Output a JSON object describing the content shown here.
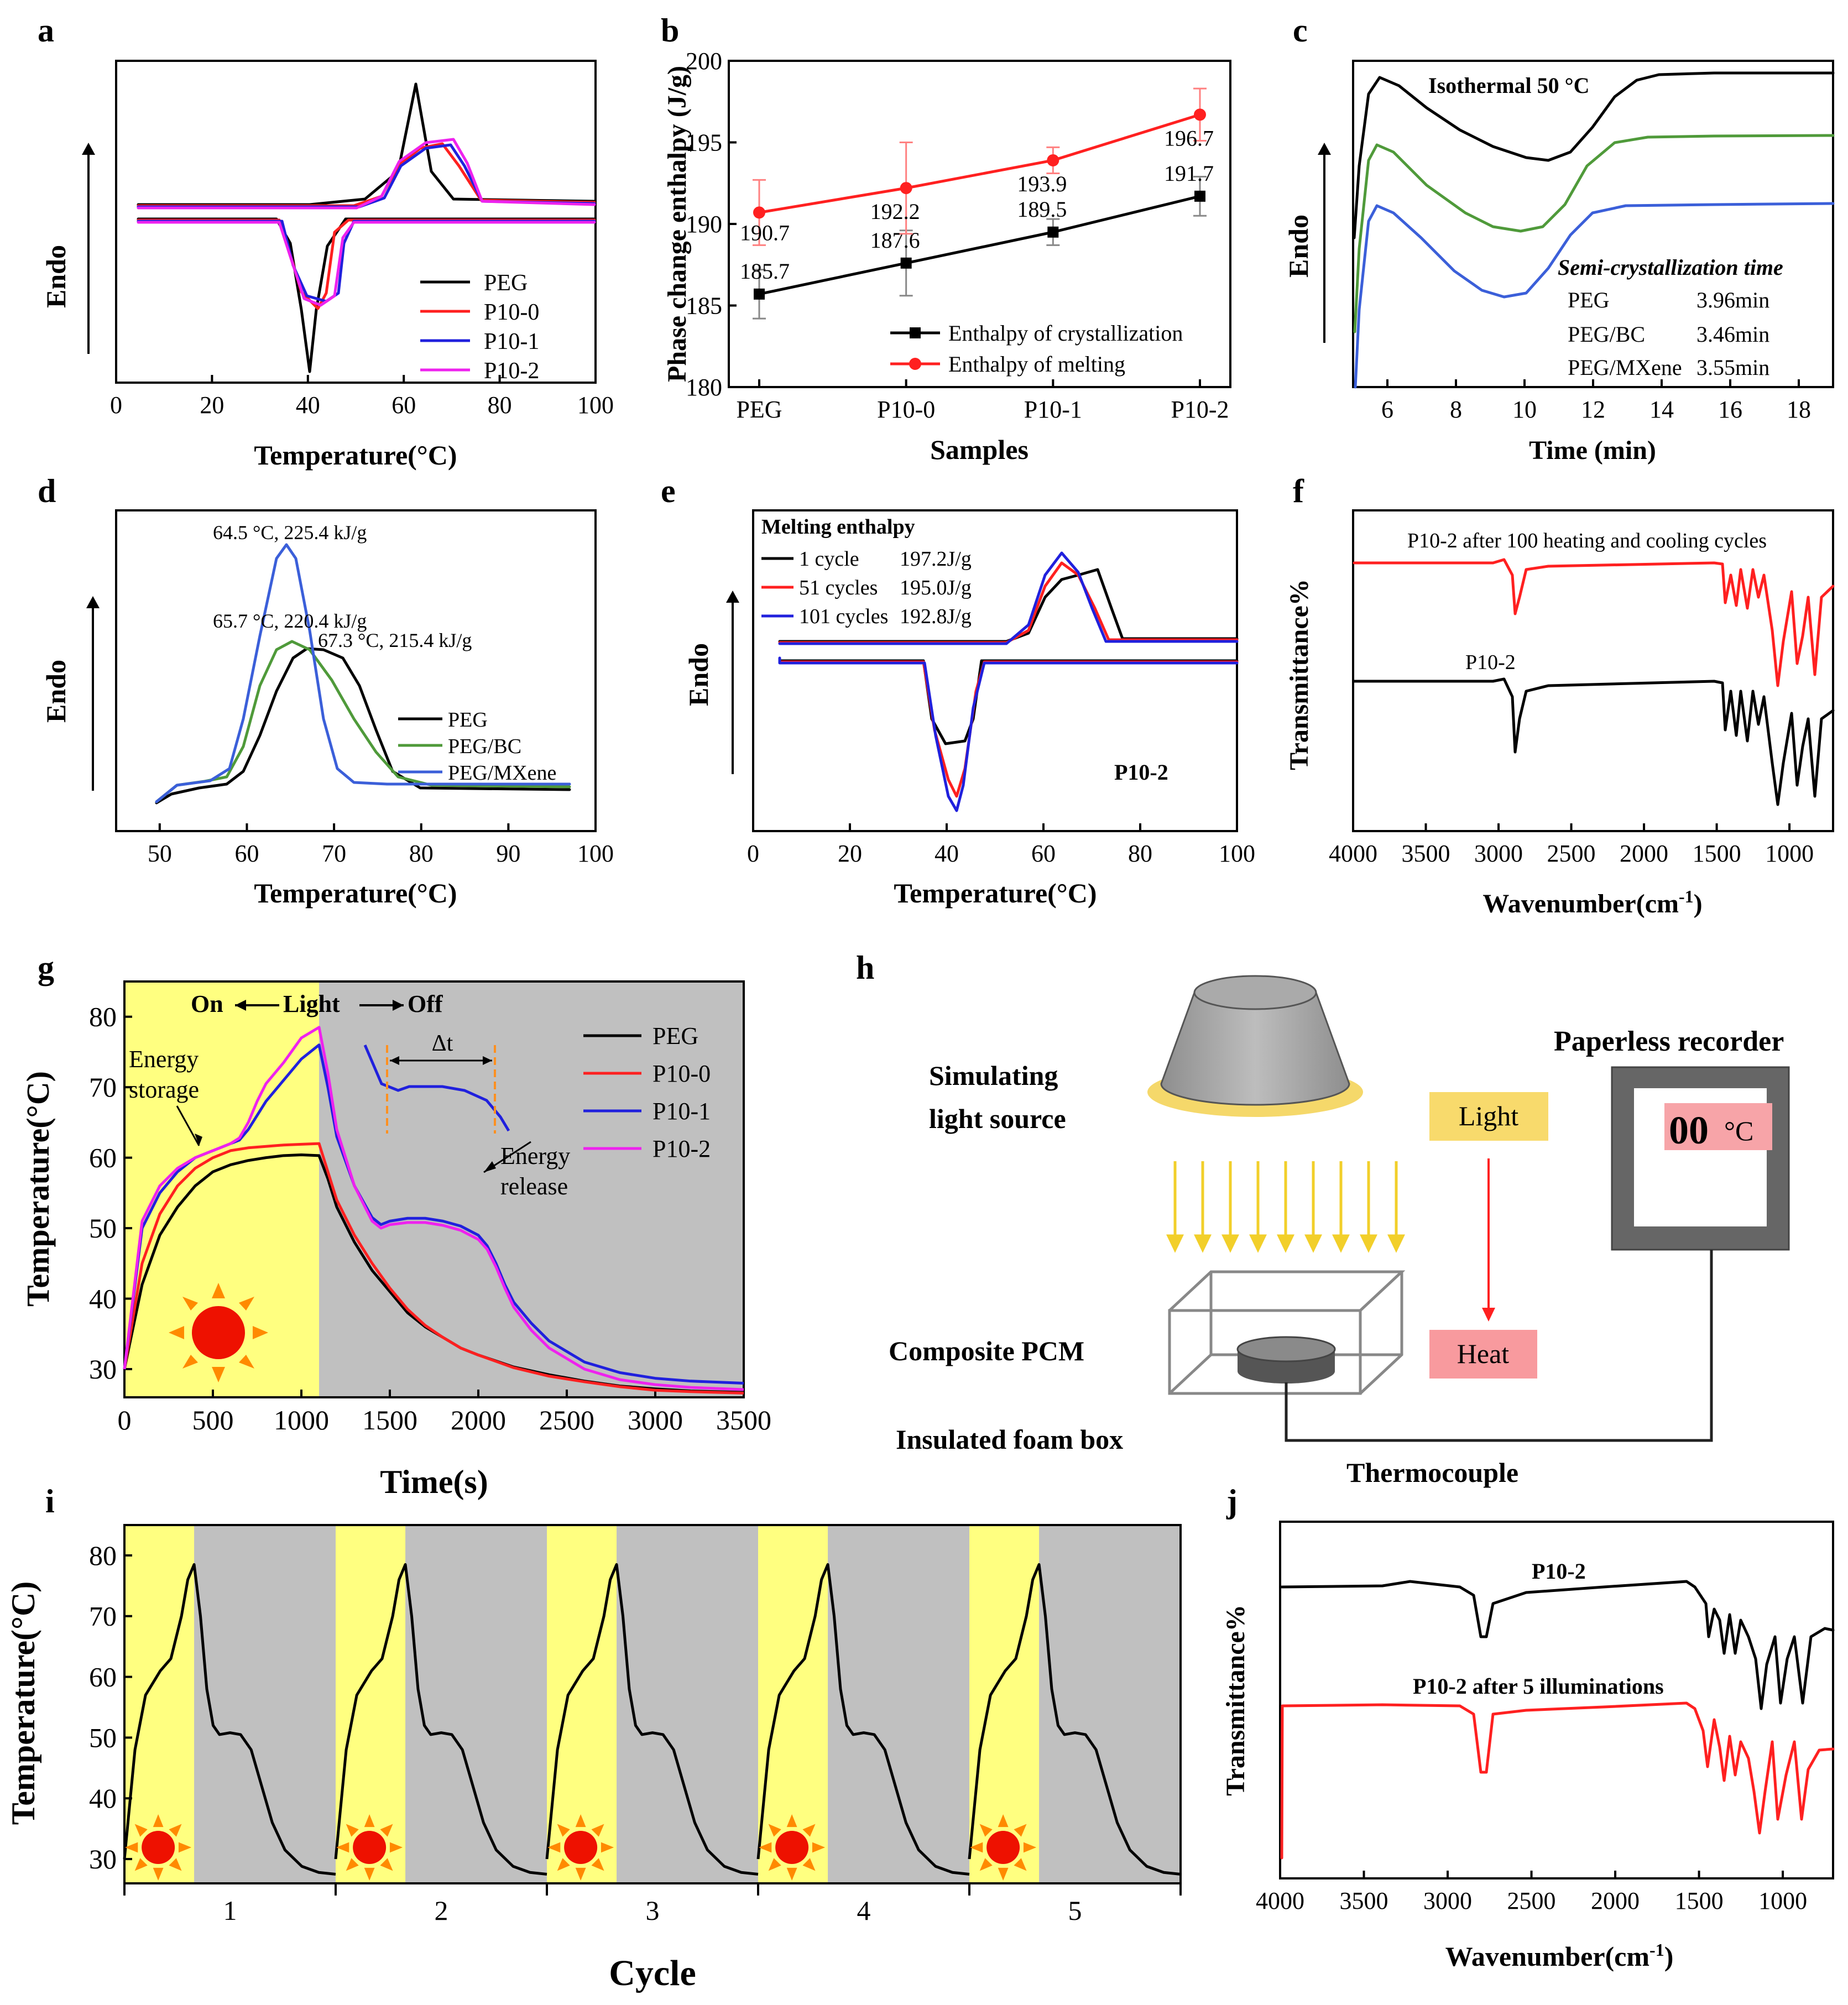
{
  "chart_data": [
    {
      "id": "a",
      "type": "line",
      "panel_label": "a",
      "xlabel": "Temperature(°C)",
      "ylabel": "Endo",
      "xlim": [
        0,
        100
      ],
      "xticks": [
        0,
        20,
        40,
        60,
        80,
        100
      ],
      "legend": [
        {
          "name": "PEG",
          "color": "#000000"
        },
        {
          "name": "P10-0",
          "color": "#ff2020"
        },
        {
          "name": "P10-1",
          "color": "#2020dd"
        },
        {
          "name": "P10-2",
          "color": "#ee22ee"
        }
      ]
    },
    {
      "id": "b",
      "type": "line",
      "panel_label": "b",
      "xlabel": "Samples",
      "ylabel": "Phase change enthalpy (J/g)",
      "categories": [
        "PEG",
        "P10-0",
        "P10-1",
        "P10-2"
      ],
      "ylim": [
        180,
        200
      ],
      "yticks": [
        180,
        185,
        190,
        195,
        200
      ],
      "series": [
        {
          "name": "Enthalpy of crystallization",
          "color": "#000000",
          "values": [
            185.7,
            187.6,
            189.5,
            191.7
          ],
          "errors": [
            1.5,
            2.0,
            0.8,
            1.2
          ],
          "labels": [
            "185.7",
            "187.6",
            "189.5",
            "191.7"
          ]
        },
        {
          "name": "Enthalpy of melting",
          "color": "#ff2020",
          "values": [
            190.7,
            192.2,
            193.9,
            196.7
          ],
          "errors": [
            2.0,
            2.8,
            0.8,
            1.6
          ],
          "labels": [
            "190.7",
            "192.2",
            "193.9",
            "196.7"
          ]
        }
      ]
    },
    {
      "id": "c",
      "type": "line",
      "panel_label": "c",
      "xlabel": "Time (min)",
      "ylabel": "Endo",
      "xlim": [
        5,
        19
      ],
      "xticks": [
        6,
        8,
        10,
        12,
        14,
        16,
        18
      ],
      "annotation": "Isothermal 50 °C",
      "table_title": "Semi-crystallization time",
      "table": [
        {
          "name": "PEG",
          "value": "3.96min",
          "color": "#000000"
        },
        {
          "name": "PEG/BC",
          "value": "3.46min",
          "color": "#4f9a3a"
        },
        {
          "name": "PEG/MXene",
          "value": "3.55min",
          "color": "#3b5fd9"
        }
      ]
    },
    {
      "id": "d",
      "type": "line",
      "panel_label": "d",
      "xlabel": "Temperature(°C)",
      "ylabel": "Endo",
      "xlim": [
        45,
        100
      ],
      "xticks": [
        50,
        60,
        70,
        80,
        90,
        100
      ],
      "peaks": [
        {
          "text": "64.5 °C, 225.4 kJ/g",
          "color": "#3b5fd9"
        },
        {
          "text": "65.7 °C, 220.4 kJ/g",
          "color": "#4f9a3a"
        },
        {
          "text": "67.3 °C, 215.4 kJ/g",
          "color": "#000000"
        }
      ],
      "legend": [
        {
          "name": "PEG",
          "color": "#000000"
        },
        {
          "name": "PEG/BC",
          "color": "#4f9a3a"
        },
        {
          "name": "PEG/MXene",
          "color": "#3b5fd9"
        }
      ]
    },
    {
      "id": "e",
      "type": "line",
      "panel_label": "e",
      "xlabel": "Temperature(°C)",
      "ylabel": "Endo",
      "xlim": [
        0,
        100
      ],
      "xticks": [
        0,
        20,
        40,
        60,
        80,
        100
      ],
      "sample": "P10-2",
      "legend_title": "Melting enthalpy",
      "legend": [
        {
          "name": "1 cycle",
          "value": "197.2J/g",
          "color": "#000000"
        },
        {
          "name": "51 cycles",
          "value": "195.0J/g",
          "color": "#ff2020"
        },
        {
          "name": "101 cycles",
          "value": "192.8J/g",
          "color": "#2020dd"
        }
      ]
    },
    {
      "id": "f",
      "type": "line",
      "panel_label": "f",
      "xlabel": "Wavenumber(cm",
      "xlabel_sup": "-1",
      "xlabel_end": ")",
      "ylabel": "Transmittance%",
      "xlim": [
        4000,
        700
      ],
      "xticks": [
        4000,
        3500,
        3000,
        2500,
        2000,
        1500,
        1000
      ],
      "series": [
        {
          "name": "P10-2 after 100 heating and cooling cycles",
          "color": "#ff2020"
        },
        {
          "name": "P10-2",
          "color": "#000000"
        }
      ]
    },
    {
      "id": "g",
      "type": "line",
      "panel_label": "g",
      "xlabel": "Time(s)",
      "ylabel": "Temperature(°C)",
      "xlim": [
        0,
        3500
      ],
      "ylim": [
        26,
        85
      ],
      "xticks": [
        0,
        500,
        1000,
        1500,
        2000,
        2500,
        3000,
        3500
      ],
      "yticks": [
        30,
        40,
        50,
        60,
        70,
        80
      ],
      "light_off_at": 1100,
      "header": {
        "on": "On",
        "light": "Light",
        "off": "Off"
      },
      "annotations": {
        "storage_1": "Energy",
        "storage_2": "storage",
        "release_1": "Energy",
        "release_2": "release",
        "delta": "Δt"
      },
      "series": [
        {
          "name": "PEG",
          "color": "#000000",
          "x": [
            0,
            100,
            200,
            300,
            400,
            500,
            600,
            700,
            800,
            900,
            1000,
            1100,
            1150,
            1200,
            1300,
            1400,
            1500,
            1600,
            1700,
            1800,
            1900,
            2000,
            2200,
            2400,
            2600,
            2800,
            3000,
            3200,
            3500
          ],
          "y": [
            30,
            42,
            49,
            53,
            56,
            58,
            59,
            59.6,
            60,
            60.3,
            60.4,
            60.3,
            57,
            53,
            48,
            44,
            41,
            38,
            36,
            34.5,
            33,
            32,
            30.3,
            29.2,
            28.3,
            27.6,
            27.2,
            26.9,
            26.7
          ]
        },
        {
          "name": "P10-0",
          "color": "#ff2020",
          "x": [
            0,
            100,
            200,
            300,
            400,
            500,
            600,
            700,
            800,
            900,
            1000,
            1100,
            1150,
            1200,
            1300,
            1400,
            1500,
            1600,
            1700,
            1800,
            1900,
            2000,
            2200,
            2400,
            2600,
            2800,
            3000,
            3200,
            3500
          ],
          "y": [
            30,
            45,
            52,
            56,
            58.5,
            60,
            61,
            61.4,
            61.6,
            61.8,
            61.9,
            62,
            58,
            54,
            49,
            45,
            41.5,
            38.5,
            36.2,
            34.5,
            33,
            32,
            30.2,
            29,
            28.2,
            27.5,
            27,
            26.8,
            26.6
          ]
        },
        {
          "name": "P10-1",
          "color": "#2020dd",
          "x": [
            0,
            100,
            200,
            300,
            400,
            500,
            600,
            650,
            700,
            750,
            800,
            900,
            1000,
            1100,
            1150,
            1200,
            1300,
            1400,
            1450,
            1500,
            1600,
            1700,
            1800,
            1900,
            2000,
            2050,
            2100,
            2150,
            2200,
            2300,
            2400,
            2600,
            2800,
            3000,
            3200,
            3500
          ],
          "y": [
            30,
            50,
            55,
            58,
            60,
            61,
            62,
            62.5,
            64,
            66,
            68,
            71,
            74,
            76,
            70,
            63,
            56,
            51.5,
            50.5,
            51,
            51.4,
            51.4,
            51,
            50.3,
            49,
            47.5,
            45,
            42,
            39.5,
            36.5,
            34,
            31,
            29.5,
            28.7,
            28.3,
            28
          ]
        },
        {
          "name": "P10-2",
          "color": "#ee22ee",
          "x": [
            0,
            100,
            200,
            300,
            400,
            500,
            600,
            650,
            700,
            750,
            800,
            900,
            1000,
            1100,
            1150,
            1200,
            1300,
            1400,
            1450,
            1500,
            1600,
            1700,
            1800,
            1900,
            2000,
            2050,
            2100,
            2150,
            2200,
            2300,
            2400,
            2600,
            2800,
            3000,
            3200,
            3500
          ],
          "y": [
            30,
            51,
            56,
            58.5,
            60,
            61,
            62,
            62.8,
            65,
            68,
            70.5,
            73.5,
            77,
            78.5,
            72,
            64,
            56,
            51,
            50,
            50.5,
            50.8,
            50.8,
            50.4,
            49.7,
            48.4,
            47,
            44.5,
            41.5,
            38.8,
            35.5,
            33,
            30,
            28.5,
            27.8,
            27.4,
            27.1
          ]
        }
      ]
    },
    {
      "id": "i",
      "type": "line",
      "panel_label": "i",
      "xlabel": "Cycle",
      "ylabel": "Temperature(°C)",
      "ylim": [
        26,
        85
      ],
      "yticks": [
        30,
        40,
        50,
        60,
        70,
        80
      ],
      "categories": [
        "1",
        "2",
        "3",
        "4",
        "5"
      ]
    },
    {
      "id": "j",
      "type": "line",
      "panel_label": "j",
      "xlabel": "Wavenumber(cm",
      "xlabel_sup": "-1",
      "xlabel_end": ")",
      "ylabel": "Transmittance%",
      "xlim": [
        4000,
        700
      ],
      "xticks": [
        4000,
        3500,
        3000,
        2500,
        2000,
        1500,
        1000
      ],
      "series": [
        {
          "name": "P10-2",
          "color": "#000000"
        },
        {
          "name": "P10-2 after 5 illuminations",
          "color": "#ff2020"
        }
      ]
    }
  ],
  "diagram_h": {
    "panel_label": "h",
    "light_source_1": "Simulating",
    "light_source_2": "light source",
    "recorder": "Paperless recorder",
    "display_digits": "00",
    "display_unit": "°C",
    "light_box": "Light",
    "heat_box": "Heat",
    "pcm": "Composite PCM",
    "box": "Insulated foam box",
    "thermocouple": "Thermocouple"
  }
}
